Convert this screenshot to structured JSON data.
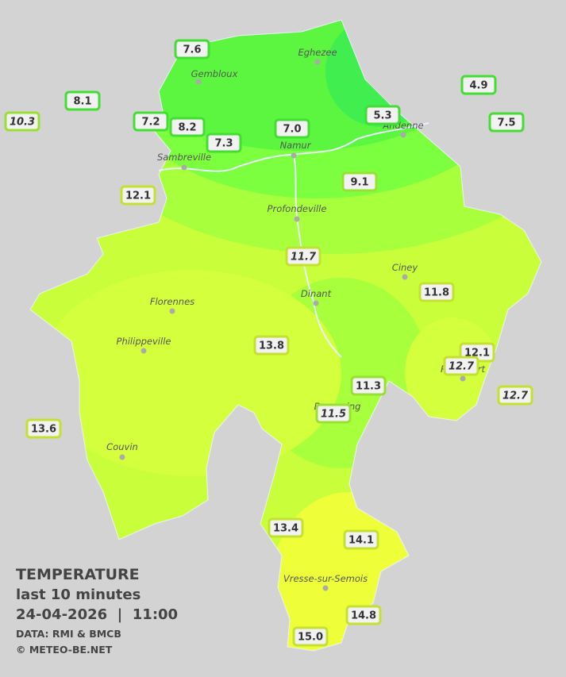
{
  "legend": {
    "title": "TEMPERATURE",
    "period": "last 10 minutes",
    "datetime": "24-04-2026  |  11:00",
    "source": "DATA: RMI & BMCB",
    "copyright": "© METEO-BE.NET"
  },
  "cities": [
    "Eghezee",
    "Gembloux",
    "Andenne",
    "Namur",
    "Sambreville",
    "Profondeville",
    "Ciney",
    "Dinant",
    "Florennes",
    "Philippeville",
    "Rochefort",
    "Beauraing",
    "Couvin",
    "Vresse-sur-Semois"
  ],
  "stations": [
    "7.6",
    "8.1",
    "10.3",
    "7.2",
    "8.2",
    "7.3",
    "7.0",
    "5.3",
    "4.9",
    "7.5",
    "12.1",
    "9.1",
    "11.7",
    "11.8",
    "13.8",
    "12.1",
    "12.7",
    "11.3",
    "11.5",
    "12.7",
    "13.6",
    "13.4",
    "14.1",
    "14.8",
    "15.0"
  ]
}
